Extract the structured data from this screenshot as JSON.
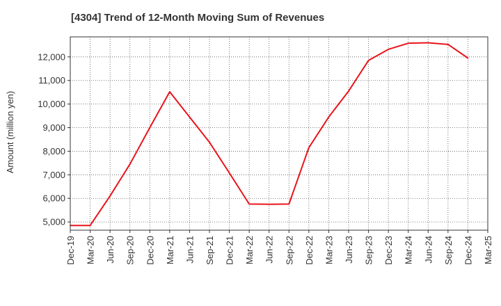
{
  "chart_data": {
    "type": "line",
    "title": "[4304]  Trend of 12-Month Moving Sum of Revenues",
    "xlabel": "",
    "ylabel": "Amount (million yen)",
    "ylim": [
      4650,
      12850
    ],
    "yticks": [
      5000,
      6000,
      7000,
      8000,
      9000,
      10000,
      11000,
      12000
    ],
    "ytick_labels": [
      "5,000",
      "6,000",
      "7,000",
      "8,000",
      "9,000",
      "10,000",
      "11,000",
      "12,000"
    ],
    "x": [
      "Dec-19",
      "Mar-20",
      "Jun-20",
      "Sep-20",
      "Dec-20",
      "Mar-21",
      "Jun-21",
      "Sep-21",
      "Dec-21",
      "Mar-22",
      "Jun-22",
      "Sep-22",
      "Dec-22",
      "Mar-23",
      "Jun-23",
      "Sep-23",
      "Dec-23",
      "Mar-24",
      "Jun-24",
      "Sep-24",
      "Dec-24",
      "Mar-25"
    ],
    "series": [
      {
        "color": "#e8141b",
        "values": [
          4850,
          4850,
          6100,
          7450,
          9000,
          10520,
          9450,
          8380,
          7080,
          5760,
          5750,
          5760,
          8150,
          9450,
          10550,
          11850,
          12320,
          12580,
          12600,
          12530,
          11950,
          null
        ]
      }
    ],
    "grid": true,
    "legend": "none"
  }
}
